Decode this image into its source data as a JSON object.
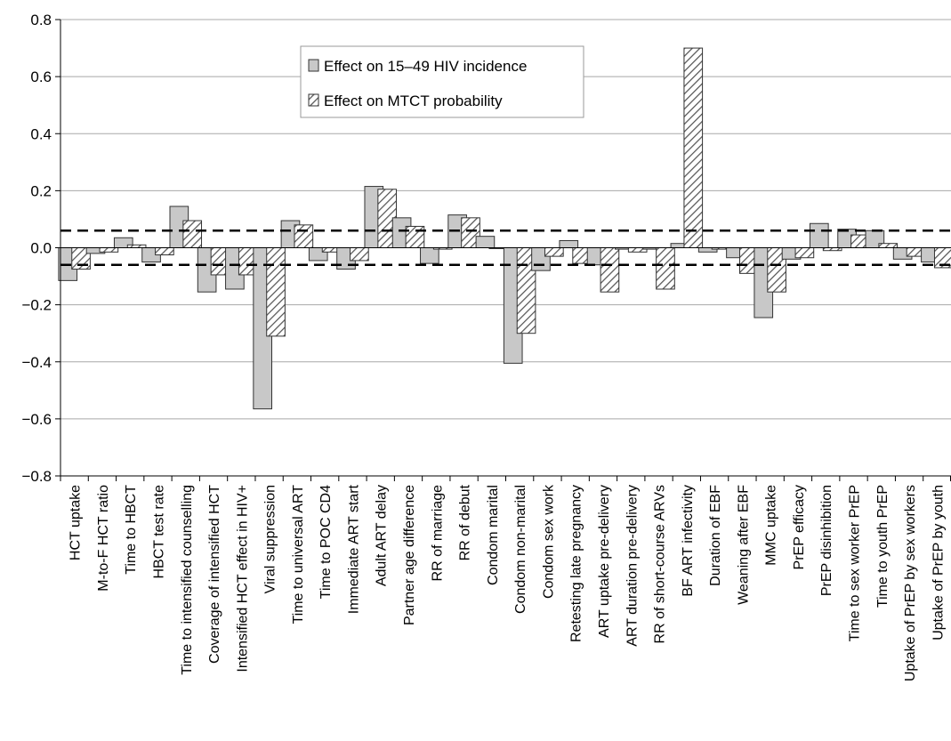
{
  "chart_data": {
    "type": "bar",
    "ylim": [
      -0.8,
      0.8
    ],
    "yticks": [
      -0.8,
      -0.6,
      -0.4,
      -0.2,
      0.0,
      0.2,
      0.4,
      0.6,
      0.8
    ],
    "ytick_labels": [
      "−0.8",
      "−0.6",
      "−0.4",
      "−0.2",
      "0.0",
      "0.2",
      "0.4",
      "0.6",
      "0.8"
    ],
    "grid": true,
    "legend_position": "top-center",
    "threshold_lines": [
      0.06,
      -0.06
    ],
    "categories": [
      "HCT uptake",
      "M-to-F HCT ratio",
      "Time to HBCT",
      "HBCT test rate",
      "Time to intensified counselling",
      "Coverage of intensified HCT",
      "Intensified HCT effect in HIV+",
      "Viral suppression",
      "Time to universal ART",
      "Time to POC CD4",
      "Immediate ART start",
      "Adult ART delay",
      "Partner age difference",
      "RR of marriage",
      "RR of debut",
      "Condom marital",
      "Condom non-marital",
      "Condom sex work",
      "Retesting late pregnancy",
      "ART uptake pre-delivery",
      "ART duration pre-delivery",
      "RR of short-course ARVs",
      "BF ART infectivity",
      "Duration of EBF",
      "Weaning after EBF",
      "MMC uptake",
      "PrEP efficacy",
      "PrEP disinhibition",
      "Time to sex worker PrEP",
      "Time to youth PrEP",
      "Uptake of PrEP by sex workers",
      "Uptake of PrEP by youth"
    ],
    "series": [
      {
        "name": "Effect on 15–49 HIV incidence",
        "style": "solid-gray",
        "values": [
          -0.115,
          -0.02,
          0.035,
          -0.05,
          0.145,
          -0.155,
          -0.145,
          -0.565,
          0.095,
          -0.045,
          -0.075,
          0.215,
          0.105,
          -0.055,
          0.115,
          0.04,
          -0.405,
          -0.08,
          0.025,
          -0.06,
          -0.005,
          -0.005,
          0.015,
          -0.015,
          -0.035,
          -0.245,
          -0.04,
          0.085,
          0.065,
          0.06,
          -0.04,
          -0.05
        ]
      },
      {
        "name": "Effect on MTCT probability",
        "style": "hatched",
        "values": [
          -0.075,
          -0.015,
          0.01,
          -0.025,
          0.095,
          -0.095,
          -0.095,
          -0.31,
          0.08,
          -0.015,
          -0.045,
          0.205,
          0.075,
          -0.005,
          0.105,
          0.0,
          -0.3,
          -0.03,
          -0.055,
          -0.155,
          -0.015,
          -0.145,
          0.7,
          -0.005,
          -0.09,
          -0.155,
          -0.035,
          -0.01,
          0.045,
          0.015,
          -0.03,
          -0.07
        ]
      }
    ]
  },
  "colors": {
    "gray_bar": "#c8c8c8",
    "hatch_bar_fill": "#ffffff",
    "hatch_stroke": "#555555",
    "bar_outline": "#333333",
    "grid": "#a8a8a8",
    "axis": "#000000",
    "dashed_line": "#000000"
  }
}
